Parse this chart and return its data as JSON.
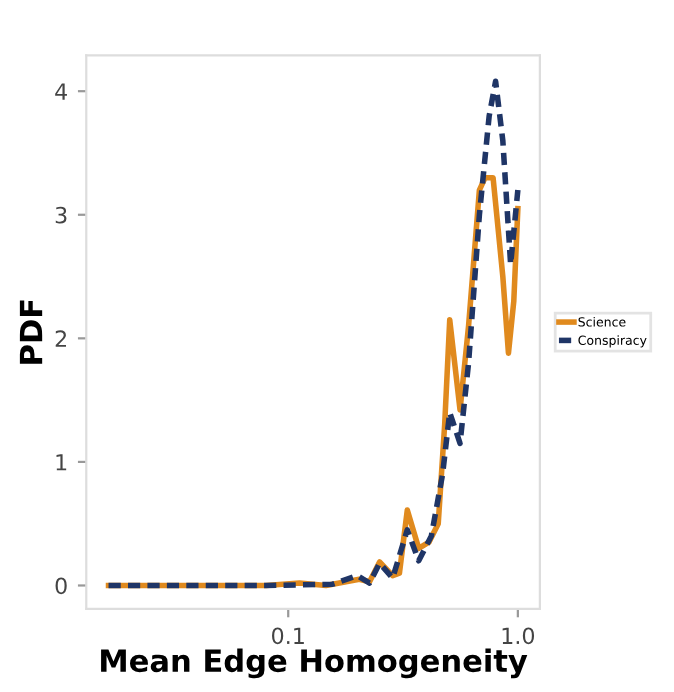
{
  "chart_data": {
    "type": "line",
    "xlabel": "Mean Edge Homogeneity",
    "ylabel": "PDF",
    "log": "x",
    "grid": false,
    "legend": "right",
    "xlim": [
      0.0132,
      1.247
    ],
    "ylim": [
      -0.19,
      4.29
    ],
    "xticks": [
      0.1,
      {
        "value": 1,
        "label": "1.0"
      }
    ],
    "yticks": [
      0,
      1,
      2,
      3,
      4
    ],
    "series": [
      {
        "name": "Science",
        "color": "#e08a1e",
        "line_style": "solid",
        "x": [
          0.0165,
          0.08,
          0.112,
          0.146,
          0.204,
          0.226,
          0.25,
          0.285,
          0.305,
          0.33,
          0.37,
          0.41,
          0.45,
          0.48,
          0.505,
          0.56,
          0.61,
          0.68,
          0.72,
          0.78,
          0.86,
          0.91,
          0.96,
          1.0
        ],
        "values": [
          0,
          0,
          0.02,
          0,
          0.05,
          0.03,
          0.19,
          0.08,
          0.1,
          0.61,
          0.3,
          0.35,
          0.5,
          1.3,
          2.15,
          1.42,
          2.1,
          3.2,
          3.3,
          3.3,
          2.5,
          1.88,
          2.3,
          3.05
        ]
      },
      {
        "name": "Conspiracy",
        "color": "#1f3566",
        "line_style": "dashed",
        "x": [
          0.0165,
          0.08,
          0.156,
          0.2,
          0.226,
          0.25,
          0.285,
          0.33,
          0.37,
          0.42,
          0.47,
          0.505,
          0.56,
          0.61,
          0.68,
          0.75,
          0.8,
          0.86,
          0.93,
          1.0
        ],
        "values": [
          0,
          0,
          0.01,
          0.08,
          0.02,
          0.18,
          0.06,
          0.45,
          0.2,
          0.4,
          0.9,
          1.4,
          1.15,
          1.8,
          3.0,
          3.8,
          4.08,
          3.6,
          2.6,
          3.2
        ]
      }
    ]
  }
}
